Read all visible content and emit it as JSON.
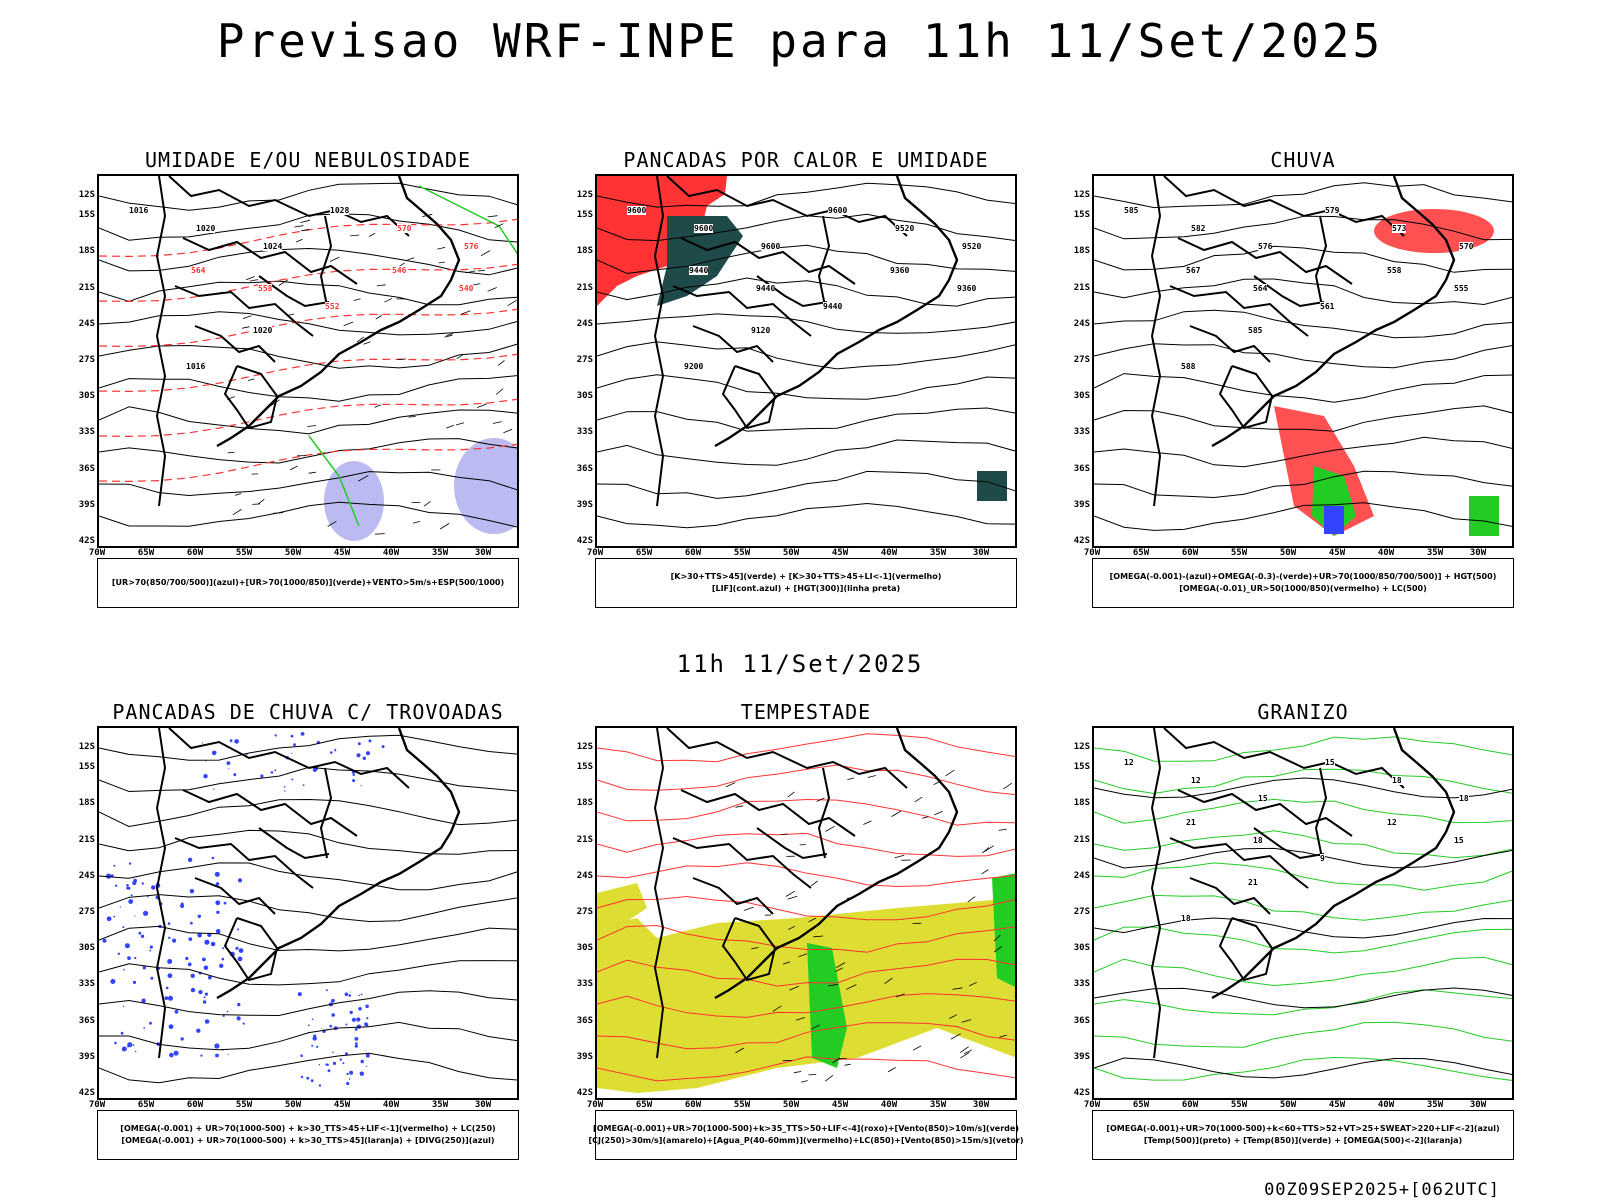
{
  "main_title": "Previsao WRF-INPE  para 11h 11/Set/2025",
  "sub_title": "11h 11/Set/2025",
  "footer": "00Z09SEP2025+[062UTC]",
  "lat_labels": [
    "12S",
    "15S",
    "18S",
    "21S",
    "24S",
    "27S",
    "30S",
    "33S",
    "36S",
    "39S",
    "42S"
  ],
  "lon_labels": [
    "70W",
    "65W",
    "60W",
    "55W",
    "50W",
    "45W",
    "40W",
    "35W",
    "30W"
  ],
  "colors": {
    "blue": "#3344ff",
    "green": "#22cc22",
    "red": "#ff3333",
    "dark_teal": "#1f4a4a",
    "yellow": "#dddd33",
    "lavender": "#aaaaee",
    "orange": "#ff9933"
  },
  "panels": [
    {
      "title": "UMIDADE E/OU NEBULOSIDADE",
      "legend": [
        "[UR>70(850/700/500)](azul)+[UR>70(1000/850)](verde)+VENTO>5m/s+ESP(500/1000)"
      ],
      "labels": [
        "1016",
        "1020",
        "1024",
        "1028",
        "570",
        "576",
        "564",
        "558",
        "552",
        "546",
        "540",
        "1016",
        "1020"
      ]
    },
    {
      "title": "PANCADAS POR CALOR E UMIDADE",
      "legend": [
        "[K>30+TTS>45](verde) + [K>30+TTS>45+LI<-1](vermelho)",
        "[LIF](cont.azul) + [HGT(300)](linha preta)"
      ],
      "labels": [
        "9600",
        "9600",
        "9600",
        "9600",
        "9520",
        "9520",
        "9440",
        "9440",
        "9440",
        "9360",
        "9360",
        "9200",
        "9120"
      ]
    },
    {
      "title": "CHUVA",
      "legend": [
        "[OMEGA(-0.001)-(azul)+OMEGA(-0.3)-(verde)+UR>70(1000/850/700/500)] + HGT(500)",
        "[OMEGA(-0.01)_UR>50(1000/850)(vermelho) + LC(500)"
      ],
      "labels": [
        "585",
        "582",
        "576",
        "579",
        "573",
        "570",
        "567",
        "564",
        "561",
        "558",
        "555",
        "588",
        "585"
      ]
    },
    {
      "title": "PANCADAS DE CHUVA C/ TROVOADAS",
      "legend": [
        "[OMEGA(-0.001) + UR>70(1000-500) + k>30_TTS>45+LIF<-1](vermelho) + LC(250)",
        "[OMEGA(-0.001) + UR>70(1000-500) + k>30_TTS>45](laranja) + [DIVG(250)](azul)"
      ],
      "labels": []
    },
    {
      "title": "TEMPESTADE",
      "legend": [
        "[OMEGA(-0.001)+UR>70(1000-500)+k>35_TTS>50+LIF<-4](roxo)+[Vento(850)>10m/s](verde)",
        "[CJ(250)>30m/s](amarelo)+[Agua_P(40-60mm)](vermelho)+LC(850)+[Vento(850)>15m/s](vetor)"
      ],
      "labels": []
    },
    {
      "title": "GRANIZO",
      "legend": [
        "[OMEGA(-0.001)+UR>70(1000-500)+k<60+TTS>52+VT>25+SWEAT>220+LIF<-2](azul)",
        "[Temp(500)](preto) + [Temp(850)](verde) + [OMEGA(500)<-2](laranja)"
      ],
      "labels": [
        "12",
        "12",
        "15",
        "15",
        "18",
        "18",
        "21",
        "18",
        "9",
        "12",
        "15",
        "18",
        "21"
      ]
    }
  ]
}
